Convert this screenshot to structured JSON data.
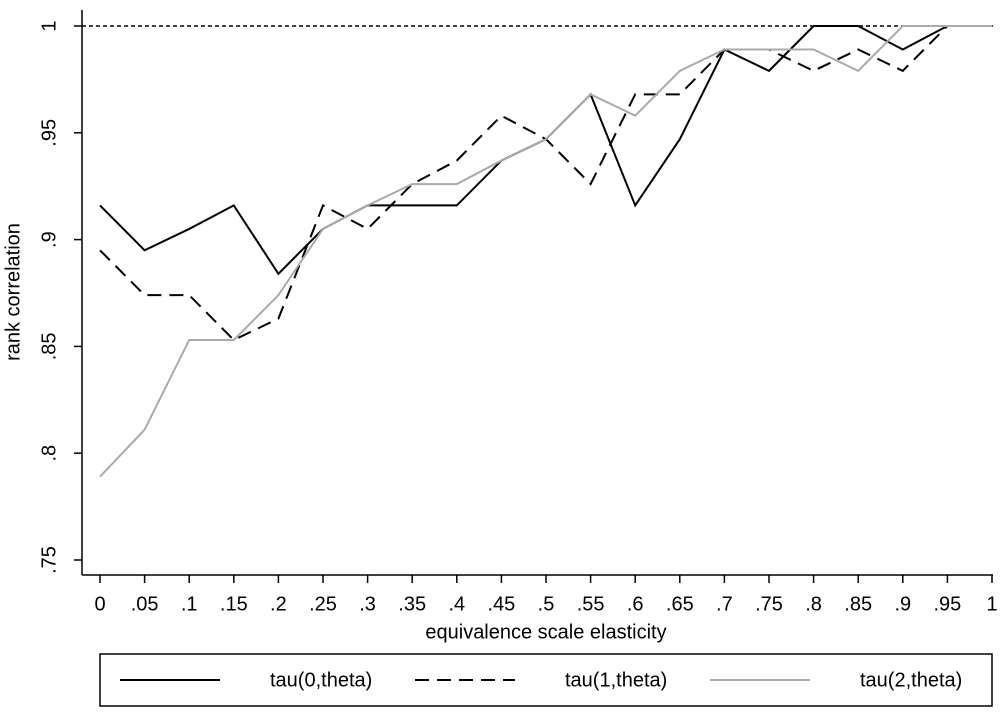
{
  "chart_data": {
    "type": "line",
    "x_label": "equivalence scale elasticity",
    "y_label": "rank correlation",
    "x": [
      0,
      0.05,
      0.1,
      0.15,
      0.2,
      0.25,
      0.3,
      0.35,
      0.4,
      0.45,
      0.5,
      0.55,
      0.6,
      0.65,
      0.7,
      0.75,
      0.8,
      0.85,
      0.9,
      0.95,
      1
    ],
    "xlim": [
      0,
      1
    ],
    "xticks": [
      0,
      {
        "value": 0.05,
        "label": ".05"
      },
      {
        "value": 0.1,
        "label": ".1"
      },
      {
        "value": 0.15,
        "label": ".15"
      },
      {
        "value": 0.2,
        "label": ".2"
      },
      {
        "value": 0.25,
        "label": ".25"
      },
      {
        "value": 0.3,
        "label": ".3"
      },
      {
        "value": 0.35,
        "label": ".35"
      },
      {
        "value": 0.4,
        "label": ".4"
      },
      {
        "value": 0.45,
        "label": ".45"
      },
      {
        "value": 0.5,
        "label": ".5"
      },
      {
        "value": 0.55,
        "label": ".55"
      },
      {
        "value": 0.6,
        "label": ".6"
      },
      {
        "value": 0.65,
        "label": ".65"
      },
      {
        "value": 0.7,
        "label": ".7"
      },
      {
        "value": 0.75,
        "label": ".75"
      },
      {
        "value": 0.8,
        "label": ".8"
      },
      {
        "value": 0.85,
        "label": ".85"
      },
      {
        "value": 0.9,
        "label": ".9"
      },
      {
        "value": 0.95,
        "label": ".95"
      },
      1
    ],
    "ylim": [
      0.75,
      1
    ],
    "yticks": [
      {
        "value": 0.75,
        "label": ".75"
      },
      {
        "value": 0.8,
        "label": ".8"
      },
      {
        "value": 0.85,
        "label": ".85"
      },
      {
        "value": 0.9,
        "label": ".9"
      },
      {
        "value": 0.95,
        "label": ".95"
      },
      1
    ],
    "reference_line": 1,
    "series": [
      {
        "name": "tau(0,theta)",
        "color": "#000000",
        "dash": "solid",
        "values": [
          0.916,
          0.895,
          0.905,
          0.916,
          0.884,
          0.905,
          0.916,
          0.916,
          0.916,
          0.937,
          0.947,
          0.968,
          0.916,
          0.947,
          0.989,
          0.979,
          1,
          1,
          0.989,
          1,
          1
        ]
      },
      {
        "name": "tau(1,theta)",
        "color": "#000000",
        "dash": "dashed",
        "values": [
          0.895,
          0.874,
          0.874,
          0.853,
          0.863,
          0.916,
          0.905,
          0.926,
          0.937,
          0.958,
          0.947,
          0.926,
          0.968,
          0.968,
          0.989,
          0.989,
          0.979,
          0.989,
          0.979,
          1,
          1
        ]
      },
      {
        "name": "tau(2,theta)",
        "color": "#aaaaaa",
        "dash": "solid",
        "values": [
          0.789,
          0.811,
          0.853,
          0.853,
          0.874,
          0.905,
          0.916,
          0.926,
          0.926,
          0.937,
          0.947,
          0.968,
          0.958,
          0.979,
          0.989,
          0.989,
          0.989,
          0.979,
          1,
          1,
          1
        ]
      }
    ]
  }
}
